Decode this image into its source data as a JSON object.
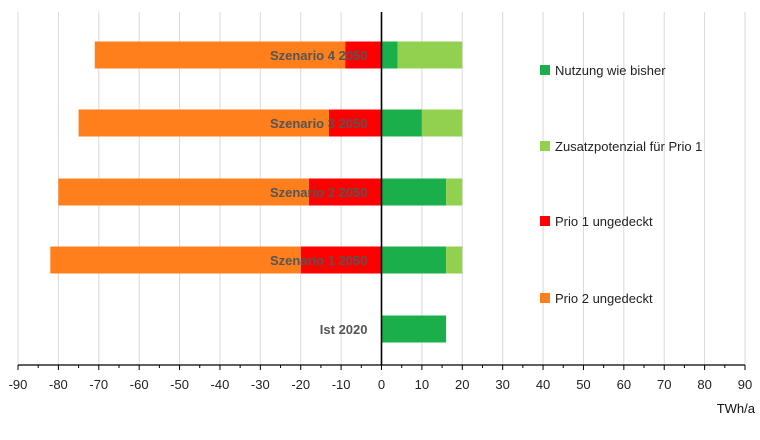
{
  "chart_data": {
    "type": "bar",
    "orientation": "horizontal",
    "stacked": true,
    "categories": [
      "Szenario 4 2050",
      "Szenario 3 2050",
      "Szenario 2 2050",
      "Szenario 1 2050",
      "Ist 2020"
    ],
    "series": [
      {
        "name": "Nutzung wie bisher",
        "color": "#1aaf4b",
        "values": [
          4,
          10,
          16,
          16,
          16
        ]
      },
      {
        "name": "Zusatzpotenzial für Prio 1",
        "color": "#92d050",
        "values": [
          16,
          10,
          4,
          4,
          0
        ]
      },
      {
        "name": "Prio 1 ungedeckt",
        "color": "#ff0000",
        "values": [
          -9,
          -13,
          -18,
          -20,
          0
        ]
      },
      {
        "name": "Prio 2 ungedeckt",
        "color": "#ff7f1d",
        "values": [
          -62,
          -62,
          -62,
          -62,
          0
        ]
      }
    ],
    "xlim": [
      -90,
      90
    ],
    "xticks": [
      "-90",
      "-80",
      "-70",
      "-60",
      "-50",
      "-40",
      "-30",
      "-20",
      "-10",
      "0",
      "10",
      "20",
      "30",
      "40",
      "50",
      "60",
      "70",
      "80",
      "90"
    ],
    "xlabel": "TWh/a",
    "grid": "vertical",
    "legend_position": "right"
  }
}
